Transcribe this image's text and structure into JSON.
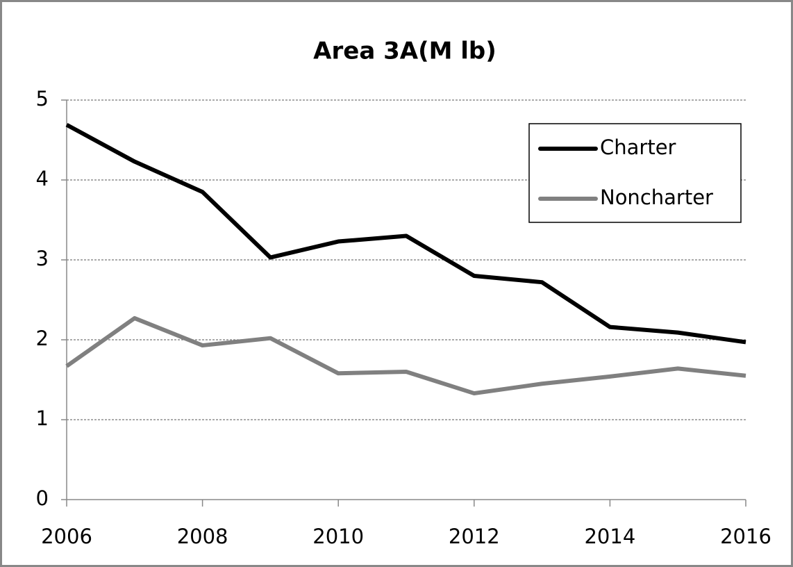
{
  "chart_data": {
    "type": "line",
    "title": "Area 3A(M lb)",
    "x": [
      2006,
      2007,
      2008,
      2009,
      2010,
      2011,
      2012,
      2013,
      2014,
      2015,
      2016
    ],
    "series": [
      {
        "name": "Charter",
        "color": "#000000",
        "values": [
          4.69,
          4.23,
          3.85,
          3.03,
          3.23,
          3.3,
          2.8,
          2.72,
          2.16,
          2.09,
          1.97
        ]
      },
      {
        "name": "Noncharter",
        "color": "#808080",
        "values": [
          1.67,
          2.27,
          1.93,
          2.02,
          1.58,
          1.6,
          1.33,
          1.45,
          1.54,
          1.64,
          1.55
        ]
      }
    ],
    "xlim": [
      2006,
      2016
    ],
    "xticks": [
      2006,
      2008,
      2010,
      2012,
      2014,
      2016
    ],
    "ylim": [
      0,
      5
    ],
    "yticks": [
      0,
      1,
      2,
      3,
      4,
      5
    ],
    "grid": true,
    "legend": "upper right"
  }
}
